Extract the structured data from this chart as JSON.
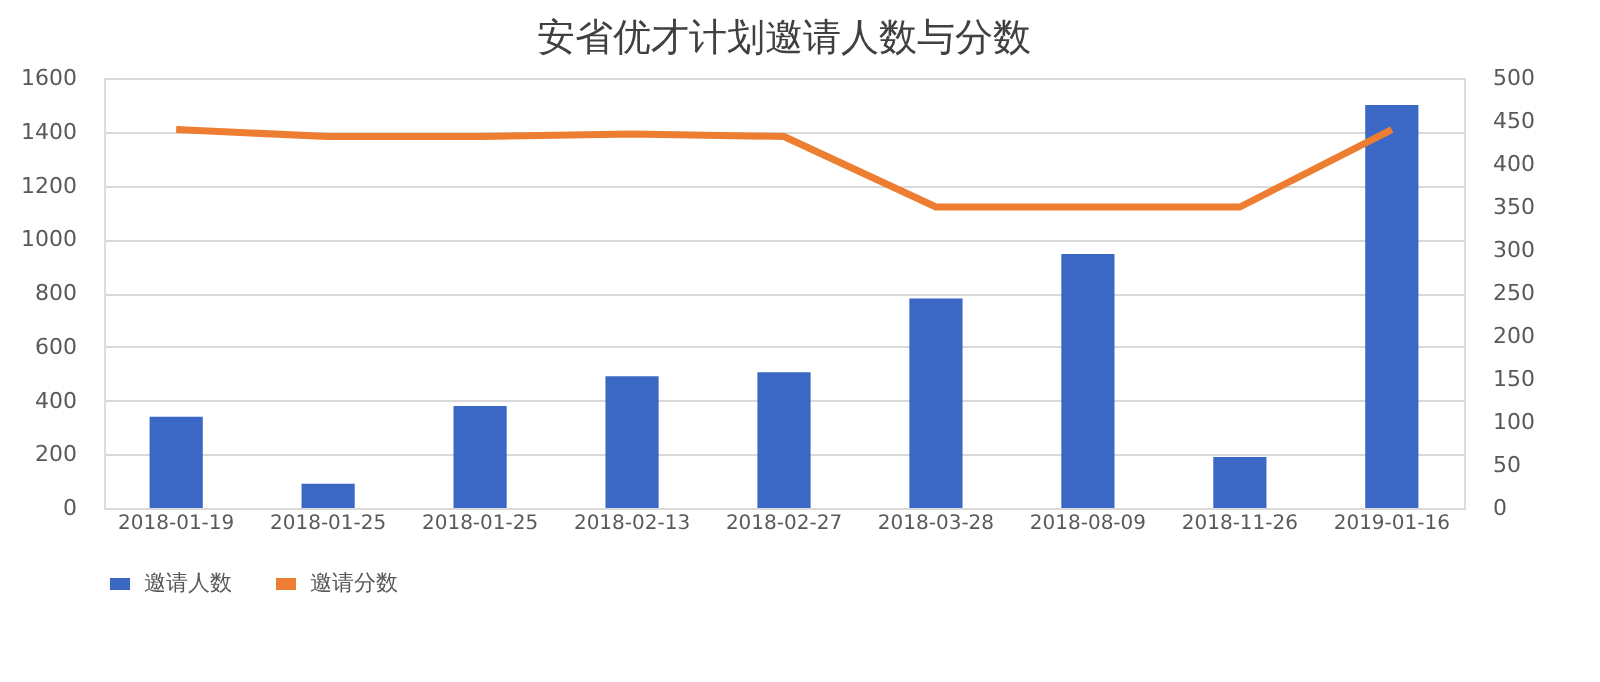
{
  "chart_data": {
    "type": "bar",
    "title": "安省优才计划邀请人数与分数",
    "categories": [
      "2018-01-19",
      "2018-01-25",
      "2018-01-25",
      "2018-02-13",
      "2018-02-27",
      "2018-03-28",
      "2018-08-09",
      "2018-11-26",
      "2019-01-16"
    ],
    "series": [
      {
        "name": "邀请人数",
        "color": "#3b68c4",
        "values": [
          340,
          90,
          380,
          490,
          505,
          780,
          945,
          190,
          1500
        ]
      },
      {
        "name": "邀请分数",
        "color": "#ed7d31",
        "type": "line",
        "axis": "y2",
        "values": [
          440,
          432,
          432,
          435,
          432,
          350,
          350,
          350,
          440
        ]
      }
    ],
    "ylim": [
      0,
      1600
    ],
    "yticks": [
      0,
      200,
      400,
      600,
      800,
      1000,
      1200,
      1400,
      1600
    ],
    "y2lim": [
      0,
      500
    ],
    "y2ticks": [
      0,
      50,
      100,
      150,
      200,
      250,
      300,
      350,
      400,
      450,
      500
    ],
    "grid": "y",
    "legend": "bottom",
    "line_style": "solid",
    "marker": "none"
  }
}
